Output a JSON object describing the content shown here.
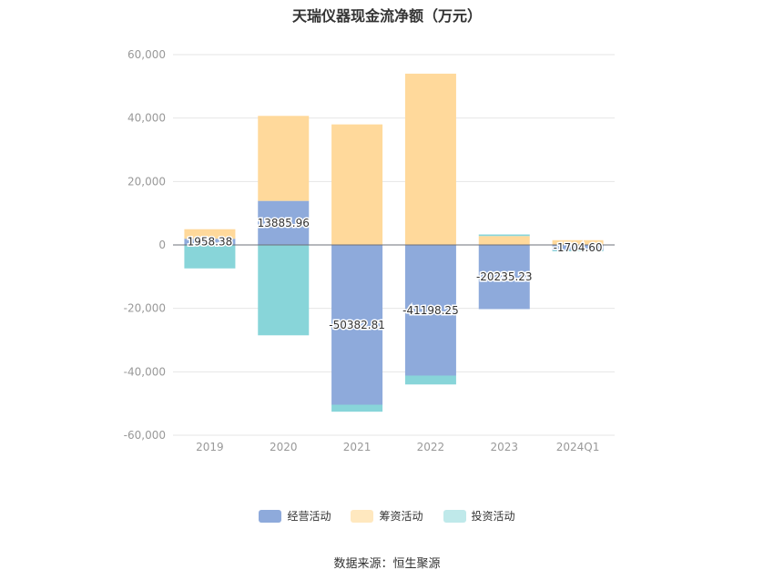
{
  "chart_data": {
    "type": "bar",
    "stacked": true,
    "title": "天瑞仪器现金流净额（万元）",
    "categories": [
      "2019",
      "2020",
      "2021",
      "2022",
      "2023",
      "2024Q1"
    ],
    "series": [
      {
        "name": "经营活动",
        "color": "#8eaadb",
        "values": [
          1958.38,
          13885.96,
          -50382.81,
          -41198.25,
          -20235.23,
          -1704.6
        ]
      },
      {
        "name": "筹资活动",
        "color": "#ffd99b",
        "values": [
          3000,
          26800,
          38000,
          54000,
          2800,
          1500
        ]
      },
      {
        "name": "投资活动",
        "color": "#88d5d9",
        "values": [
          -7400,
          -28500,
          -2200,
          -2800,
          500,
          -300
        ]
      }
    ],
    "data_labels": [
      "1958.38",
      "13885.96",
      "-50382.81",
      "-41198.25",
      "-20235.23",
      "-1704.60"
    ],
    "ylim": [
      -60000,
      60000
    ],
    "yticks": [
      "60,000",
      "40,000",
      "20,000",
      "0",
      "-20,000",
      "-40,000",
      "-60,000"
    ],
    "ytick_values": [
      60000,
      40000,
      20000,
      0,
      -20000,
      -40000,
      -60000
    ],
    "grid": true,
    "legend_position": "bottom"
  },
  "legend": {
    "items": [
      {
        "label": "经营活动",
        "color": "#8eaadb"
      },
      {
        "label": "筹资活动",
        "color": "#ffe8bf"
      },
      {
        "label": "投资活动",
        "color": "#bfe9ea"
      }
    ]
  },
  "source": "数据来源：恒生聚源"
}
